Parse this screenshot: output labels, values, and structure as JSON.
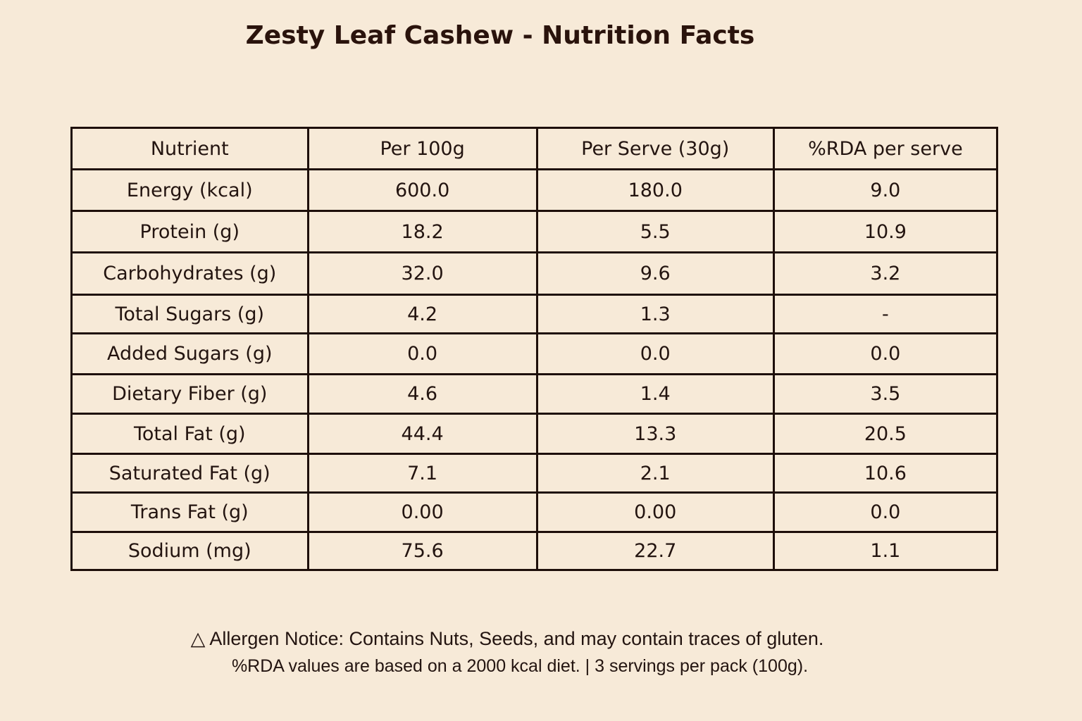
{
  "title": "Zesty Leaf Cashew - Nutrition Facts",
  "table": {
    "headers": [
      "Nutrient",
      "Per 100g",
      "Per Serve (30g)",
      "%RDA per serve"
    ],
    "rows": [
      [
        "Energy (kcal)",
        "600.0",
        "180.0",
        "9.0"
      ],
      [
        "Protein (g)",
        "18.2",
        "5.5",
        "10.9"
      ],
      [
        "Carbohydrates (g)",
        "32.0",
        "9.6",
        "3.2"
      ],
      [
        "Total Sugars (g)",
        "4.2",
        "1.3",
        "-"
      ],
      [
        "Added Sugars (g)",
        "0.0",
        "0.0",
        "0.0"
      ],
      [
        "Dietary Fiber (g)",
        "4.6",
        "1.4",
        "3.5"
      ],
      [
        "Total Fat (g)",
        "44.4",
        "13.3",
        "20.5"
      ],
      [
        "Saturated Fat (g)",
        "7.1",
        "2.1",
        "10.6"
      ],
      [
        "Trans Fat (g)",
        "0.00",
        "0.00",
        "0.0"
      ],
      [
        "Sodium (mg)",
        "75.6",
        "22.7",
        "1.1"
      ]
    ]
  },
  "footer": {
    "allergen": "△ Allergen Notice: Contains Nuts, Seeds, and may contain traces of gluten.",
    "note": "%RDA values are based on a 2000 kcal diet. | 3 servings per pack (100g)."
  }
}
